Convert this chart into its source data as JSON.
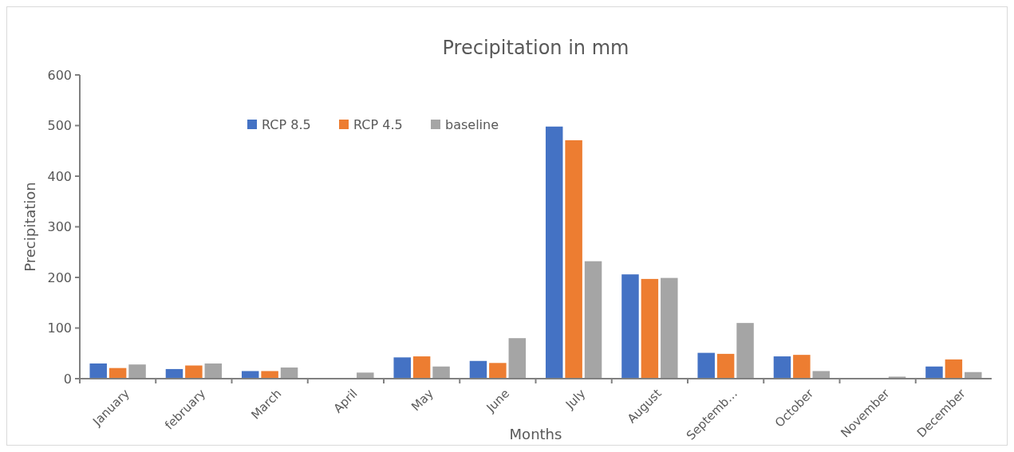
{
  "chart_data": {
    "type": "bar",
    "title": "Precipitation in mm",
    "xlabel": "Months",
    "ylabel": "Precipitation",
    "categories": [
      "January",
      "february",
      "March",
      "April",
      "May",
      "June",
      "July",
      "August",
      "Septemb…",
      "October",
      "November",
      "December"
    ],
    "series": [
      {
        "name": "RCP 8.5",
        "color": "#4472c4",
        "values": [
          30,
          19,
          15,
          0,
          42,
          35,
          498,
          206,
          51,
          44,
          0,
          24
        ]
      },
      {
        "name": "RCP 4.5",
        "color": "#ed7d31",
        "values": [
          21,
          26,
          15,
          0,
          44,
          31,
          471,
          197,
          49,
          47,
          0,
          38
        ]
      },
      {
        "name": "baseline",
        "color": "#a5a5a5",
        "values": [
          28,
          30,
          22,
          12,
          24,
          80,
          232,
          199,
          110,
          15,
          4,
          13
        ]
      }
    ],
    "ylim": [
      0,
      600
    ],
    "yticks": [
      0,
      100,
      200,
      300,
      400,
      500,
      600
    ],
    "grid": false,
    "legend": "top left"
  }
}
